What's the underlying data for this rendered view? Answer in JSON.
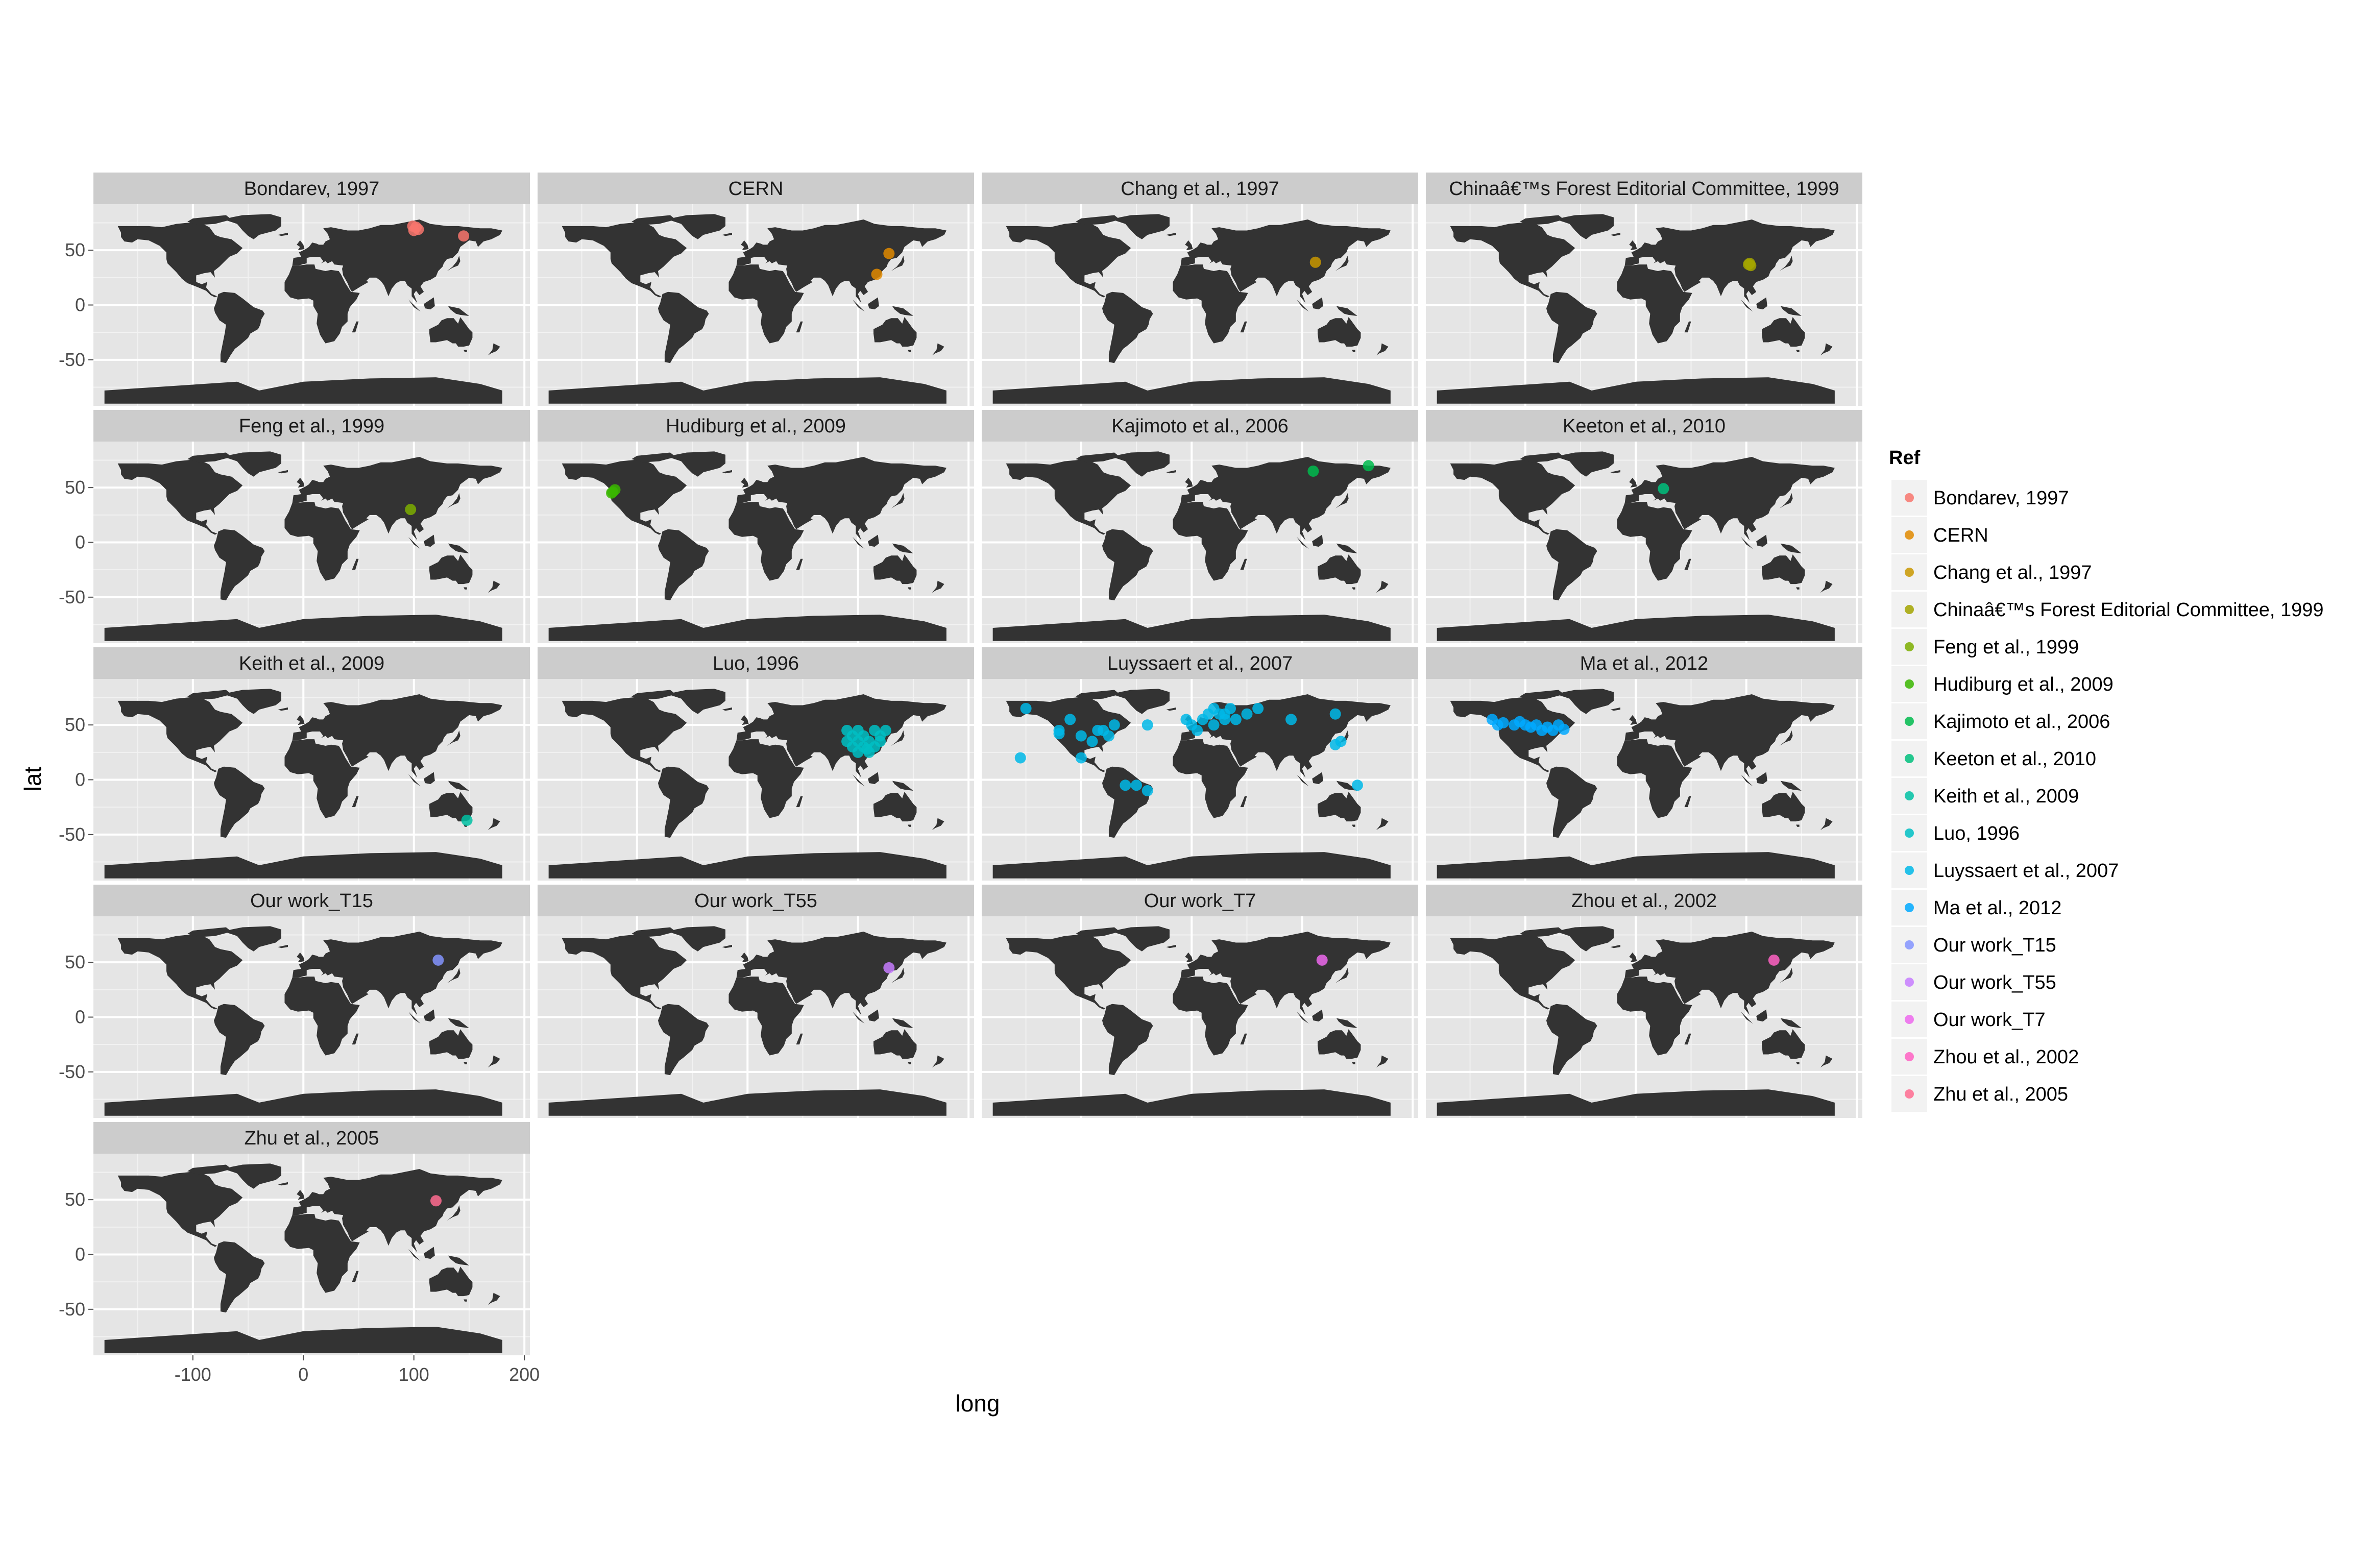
{
  "chart_data": {
    "type": "scatter",
    "xlabel": "long",
    "ylabel": "lat",
    "xlim": [
      -190,
      205
    ],
    "ylim": [
      -92,
      92
    ],
    "x_ticks": [
      -100,
      0,
      100,
      200
    ],
    "y_ticks": [
      50,
      0,
      -50
    ],
    "x_tick_labels": [
      "-100",
      "0",
      "100",
      "200"
    ],
    "y_tick_labels": [
      "50",
      "0",
      "-50"
    ],
    "grid": true,
    "background": "world-map",
    "legend": {
      "title": "Ref",
      "position": "right"
    },
    "colors": {
      "panel": "#e5e5e5",
      "strip": "#cccccc",
      "land": "#333333",
      "grid": "#ffffff"
    },
    "series": [
      {
        "name": "Bondarev, 1997",
        "color": "#F8766D",
        "points": [
          [
            100,
            68
          ],
          [
            102,
            71
          ],
          [
            104,
            69
          ],
          [
            99,
            72
          ],
          [
            145,
            63
          ]
        ]
      },
      {
        "name": "CERN",
        "color": "#E18A00",
        "points": [
          [
            128,
            47
          ],
          [
            117,
            28
          ]
        ]
      },
      {
        "name": "Chang et al., 1997",
        "color": "#C99800",
        "points": [
          [
            112,
            39
          ]
        ]
      },
      {
        "name": "Chinaâ€™s Forest Editorial Committee, 1999",
        "color": "#A3A500",
        "points": [
          [
            102,
            37
          ],
          [
            104,
            36
          ],
          [
            103,
            38
          ]
        ]
      },
      {
        "name": "Feng et al., 1999",
        "color": "#7CAE00",
        "points": [
          [
            97,
            30
          ]
        ]
      },
      {
        "name": "Hudiburg et al., 2009",
        "color": "#39B600",
        "points": [
          [
            -122,
            46
          ],
          [
            -120,
            48
          ],
          [
            -123,
            45
          ]
        ]
      },
      {
        "name": "Kajimoto et al., 2006",
        "color": "#00BB4E",
        "points": [
          [
            110,
            65
          ],
          [
            160,
            70
          ]
        ]
      },
      {
        "name": "Keeton et al., 2010",
        "color": "#00BF7D",
        "points": [
          [
            25,
            49
          ]
        ]
      },
      {
        "name": "Keith et al., 2009",
        "color": "#00C1A3",
        "points": [
          [
            148,
            -37
          ]
        ]
      },
      {
        "name": "Luo, 1996",
        "color": "#00BFC4",
        "points": [
          [
            90,
            45
          ],
          [
            95,
            40
          ],
          [
            100,
            35
          ],
          [
            105,
            30
          ],
          [
            110,
            25
          ],
          [
            115,
            30
          ],
          [
            120,
            40
          ],
          [
            100,
            45
          ],
          [
            105,
            40
          ],
          [
            110,
            35
          ],
          [
            115,
            45
          ],
          [
            120,
            35
          ],
          [
            125,
            45
          ],
          [
            95,
            30
          ],
          [
            90,
            35
          ],
          [
            100,
            25
          ],
          [
            108,
            28
          ]
        ]
      },
      {
        "name": "Luyssaert et al., 2007",
        "color": "#00B8E7",
        "points": [
          [
            -150,
            65
          ],
          [
            -120,
            45
          ],
          [
            -100,
            40
          ],
          [
            -80,
            45
          ],
          [
            -90,
            35
          ],
          [
            -100,
            20
          ],
          [
            -155,
            20
          ],
          [
            -60,
            -5
          ],
          [
            -50,
            -5
          ],
          [
            -40,
            -10
          ],
          [
            -75,
            40
          ],
          [
            -110,
            55
          ],
          [
            10,
            55
          ],
          [
            15,
            60
          ],
          [
            20,
            50
          ],
          [
            25,
            60
          ],
          [
            30,
            55
          ],
          [
            0,
            50
          ],
          [
            5,
            45
          ],
          [
            -5,
            55
          ],
          [
            40,
            55
          ],
          [
            50,
            60
          ],
          [
            60,
            65
          ],
          [
            90,
            55
          ],
          [
            130,
            60
          ],
          [
            135,
            35
          ],
          [
            130,
            32
          ],
          [
            -85,
            45
          ],
          [
            -70,
            50
          ],
          [
            -120,
            42
          ],
          [
            150,
            -5
          ],
          [
            20,
            65
          ],
          [
            30,
            60
          ],
          [
            35,
            65
          ],
          [
            -40,
            50
          ]
        ]
      },
      {
        "name": "Ma et al., 2012",
        "color": "#00A9FF",
        "points": [
          [
            -130,
            55
          ],
          [
            -120,
            52
          ],
          [
            -110,
            50
          ],
          [
            -100,
            50
          ],
          [
            -90,
            50
          ],
          [
            -80,
            48
          ],
          [
            -70,
            50
          ],
          [
            -125,
            50
          ],
          [
            -105,
            53
          ],
          [
            -95,
            48
          ],
          [
            -85,
            45
          ],
          [
            -75,
            45
          ],
          [
            -65,
            46
          ]
        ]
      },
      {
        "name": "Our work_T15",
        "color": "#8494FF",
        "points": [
          [
            122,
            52
          ]
        ]
      },
      {
        "name": "Our work_T55",
        "color": "#C77CFF",
        "points": [
          [
            128,
            45
          ]
        ]
      },
      {
        "name": "Our work_T7",
        "color": "#ED68ED",
        "points": [
          [
            118,
            52
          ]
        ]
      },
      {
        "name": "Zhou et al., 2002",
        "color": "#FF61C3",
        "points": [
          [
            125,
            52
          ]
        ]
      },
      {
        "name": "Zhu et al., 2005",
        "color": "#FF6C91",
        "points": [
          [
            120,
            49
          ]
        ]
      }
    ]
  }
}
